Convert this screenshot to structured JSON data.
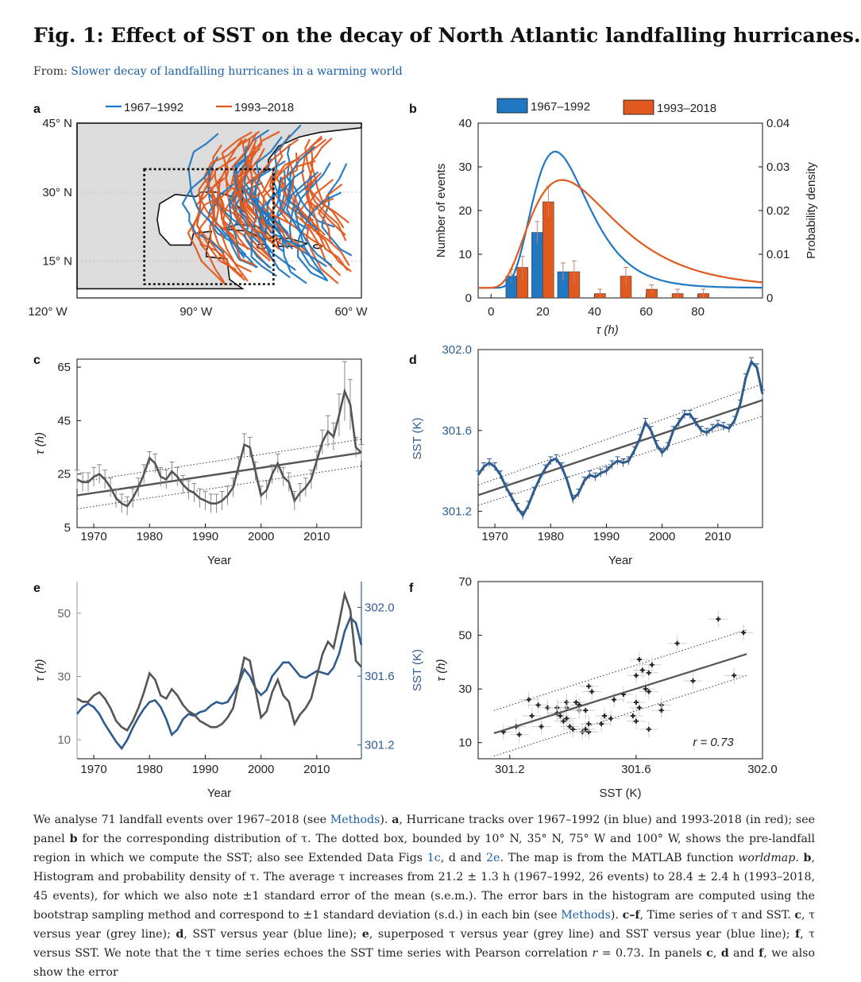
{
  "header": {
    "title": "Fig. 1: Effect of SST on the decay of North Atlantic landfalling hurricanes.",
    "from_label": "From:",
    "from_link": "Slower decay of landfalling hurricanes in a warming world"
  },
  "colors": {
    "blue": "#1f78c1",
    "red": "#e05a1f",
    "dark_blue": "#2f5b8f",
    "grey": "#555555",
    "land": "#dcdcdc",
    "link": "#1a5fa8",
    "accent_text": "#2f5b8f"
  },
  "chart_data": [
    {
      "panel": "a",
      "type": "map",
      "legend": [
        "1967–1992",
        "1993–2018"
      ],
      "lat_ticks": [
        "45° N",
        "30° N",
        "15° N"
      ],
      "lon_ticks": [
        "120° W",
        "90° W",
        "60° W"
      ],
      "lat_range": [
        7,
        45
      ],
      "lon_range": [
        -113,
        -58
      ],
      "box": {
        "lat": [
          10,
          35
        ],
        "lon": [
          -100,
          -75
        ]
      }
    },
    {
      "panel": "b",
      "type": "bar",
      "xlabel": "τ (h)",
      "ylabel": "Number of events",
      "ylabel_right": "Probability density",
      "x_ticks": [
        0,
        20,
        40,
        60,
        80
      ],
      "y_ticks": [
        0,
        10,
        20,
        30,
        40
      ],
      "y2_ticks": [
        "0",
        "0.01",
        "0.02",
        "0.03",
        "0.04"
      ],
      "xlim": [
        -5,
        105
      ],
      "ylim": [
        0,
        40
      ],
      "y2lim": [
        0,
        0.04
      ],
      "series": [
        {
          "name": "1967–1992",
          "x": [
            10,
            20,
            30
          ],
          "values": [
            5,
            15,
            6
          ],
          "err": [
            1.5,
            2.5,
            2
          ]
        },
        {
          "name": "1993–2018",
          "x": [
            10,
            20,
            30,
            40,
            50,
            60,
            70,
            80,
            90
          ],
          "values": [
            7,
            22,
            6,
            1,
            5,
            2,
            1,
            1,
            0
          ],
          "err": [
            2.5,
            3.5,
            2.5,
            1,
            2,
            1,
            1,
            1,
            0
          ]
        }
      ],
      "pdf": [
        {
          "name": "1967–1992",
          "mean": 21.2
        },
        {
          "name": "1993–2018",
          "mean": 28.4
        }
      ]
    },
    {
      "panel": "c",
      "type": "line",
      "xlabel": "Year",
      "ylabel": "τ (h)",
      "x_ticks": [
        1970,
        1980,
        1990,
        2000,
        2010
      ],
      "y_ticks": [
        5,
        25,
        45,
        65
      ],
      "xlim": [
        1967,
        2018
      ],
      "ylim": [
        5,
        68
      ],
      "x": [
        1967,
        1968,
        1969,
        1970,
        1971,
        1972,
        1973,
        1974,
        1975,
        1976,
        1977,
        1978,
        1979,
        1980,
        1981,
        1982,
        1983,
        1984,
        1985,
        1986,
        1987,
        1988,
        1989,
        1990,
        1991,
        1992,
        1993,
        1994,
        1995,
        1996,
        1997,
        1998,
        1999,
        2000,
        2001,
        2002,
        2003,
        2004,
        2005,
        2006,
        2007,
        2008,
        2009,
        2010,
        2011,
        2012,
        2013,
        2014,
        2015,
        2016,
        2017,
        2018
      ],
      "values": [
        23,
        22,
        22,
        24,
        25,
        23,
        20,
        16,
        14,
        13,
        16,
        20,
        25,
        31,
        29,
        24,
        23,
        26,
        24,
        21,
        19,
        18,
        16,
        15,
        14,
        14,
        15,
        17,
        20,
        28,
        36,
        35,
        26,
        17,
        19,
        25,
        29,
        24,
        22,
        15,
        18,
        20,
        23,
        30,
        37,
        41,
        39,
        47,
        56,
        51,
        35,
        33
      ],
      "trend": [
        17,
        33
      ],
      "band_low": [
        12,
        28
      ],
      "band_high": [
        22,
        38
      ]
    },
    {
      "panel": "d",
      "type": "line",
      "xlabel": "Year",
      "ylabel": "SST (K)",
      "x_ticks": [
        1970,
        1980,
        1990,
        2000,
        2010
      ],
      "y_ticks": [
        "301.2",
        "301.6",
        "302.0"
      ],
      "xlim": [
        1967,
        2018
      ],
      "ylim": [
        301.12,
        302.0
      ],
      "x": [
        1967,
        1968,
        1969,
        1970,
        1971,
        1972,
        1973,
        1974,
        1975,
        1976,
        1977,
        1978,
        1979,
        1980,
        1981,
        1982,
        1983,
        1984,
        1985,
        1986,
        1987,
        1988,
        1989,
        1990,
        1991,
        1992,
        1993,
        1994,
        1995,
        1996,
        1997,
        1998,
        1999,
        2000,
        2001,
        2002,
        2003,
        2004,
        2005,
        2006,
        2007,
        2008,
        2009,
        2010,
        2011,
        2012,
        2013,
        2014,
        2015,
        2016,
        2017,
        2018
      ],
      "values": [
        301.38,
        301.42,
        301.44,
        301.42,
        301.38,
        301.32,
        301.27,
        301.22,
        301.18,
        301.23,
        301.3,
        301.36,
        301.41,
        301.45,
        301.46,
        301.42,
        301.35,
        301.26,
        301.29,
        301.35,
        301.38,
        301.37,
        301.39,
        301.4,
        301.43,
        301.45,
        301.44,
        301.45,
        301.5,
        301.56,
        301.64,
        301.6,
        301.53,
        301.49,
        301.52,
        301.6,
        301.64,
        301.68,
        301.68,
        301.64,
        301.6,
        301.59,
        301.61,
        301.63,
        301.62,
        301.61,
        301.65,
        301.73,
        301.86,
        301.94,
        301.91,
        301.78
      ],
      "trend": [
        301.28,
        301.75
      ],
      "band_low": [
        301.23,
        301.67
      ],
      "band_high": [
        301.33,
        301.83
      ]
    },
    {
      "panel": "e",
      "type": "line",
      "xlabel": "Year",
      "ylabel": "τ (h)",
      "ylabel_right": "SST (K)",
      "x_ticks": [
        1970,
        1980,
        1990,
        2000,
        2010
      ],
      "y_ticks": [
        10,
        30,
        50
      ],
      "y2_ticks": [
        "301.2",
        "301.6",
        "302.0"
      ],
      "xlim": [
        1967,
        2018
      ],
      "ylim": [
        4,
        60
      ],
      "y2lim": [
        301.12,
        302.15
      ]
    },
    {
      "panel": "f",
      "type": "scatter",
      "xlabel": "SST (K)",
      "ylabel": "τ (h)",
      "x_ticks": [
        "301.2",
        "301.6",
        "302.0"
      ],
      "y_ticks": [
        10,
        30,
        50,
        70
      ],
      "xlim": [
        301.1,
        302.0
      ],
      "ylim": [
        4,
        70
      ],
      "annotation": "r = 0.73",
      "trend_x": [
        301.15,
        301.95
      ],
      "trend_y": [
        13.5,
        43
      ],
      "band_low_y": [
        5,
        35
      ],
      "band_high_y": [
        22,
        52
      ]
    }
  ],
  "caption": {
    "s1": "We analyse 71 landfall events over 1967–2018 (see ",
    "l1": "Methods",
    "s2": "). ",
    "b_a": "a",
    "s3": ", Hurricane tracks over 1967–1992 (in blue) and 1993-2018 (in red); see panel ",
    "b_b": "b",
    "s4": " for the corresponding distribution of τ. The dotted box, bounded by 10° N, 35° N, 75° W and 100° W, shows the pre-landfall region in which we compute the SST; also see Extended Data Figs ",
    "l2": "1c",
    "s5": ", d and ",
    "l3": "2e",
    "s6": ". The map is from the MATLAB function ",
    "i1": "worldmap",
    "s7": ". ",
    "b_b2": "b",
    "s8": ", Histogram and probability density of τ. The average τ increases from 21.2 ± 1.3 h (1967–1992, 26 events) to 28.4 ± 2.4 h (1993–2018, 45 events), for which we also note ±1 standard error of the mean (s.e.m.). The error bars in the histogram are computed using the bootstrap sampling method and correspond to ±1 standard deviation (s.d.) in each bin (see ",
    "l4": "Methods",
    "s9": "). ",
    "b_cf": "c–f",
    "s10": ", Time series of τ and SST. ",
    "b_c": "c",
    "s11": ", τ versus year (grey line); ",
    "b_d": "d",
    "s12": ", SST versus year (blue line); ",
    "b_e": "e",
    "s13": ", superposed τ versus year (grey line) and SST versus year (blue line); ",
    "b_f": "f",
    "s14": ", τ versus SST. We note that the τ time series echoes the SST time series with Pearson correlation ",
    "i2": "r",
    "s15": " = 0.73. In panels ",
    "b_c2": "c",
    "s16": ", ",
    "b_d2": "d",
    "s17": " and ",
    "b_f2": "f",
    "s18": ", we also show the error"
  }
}
